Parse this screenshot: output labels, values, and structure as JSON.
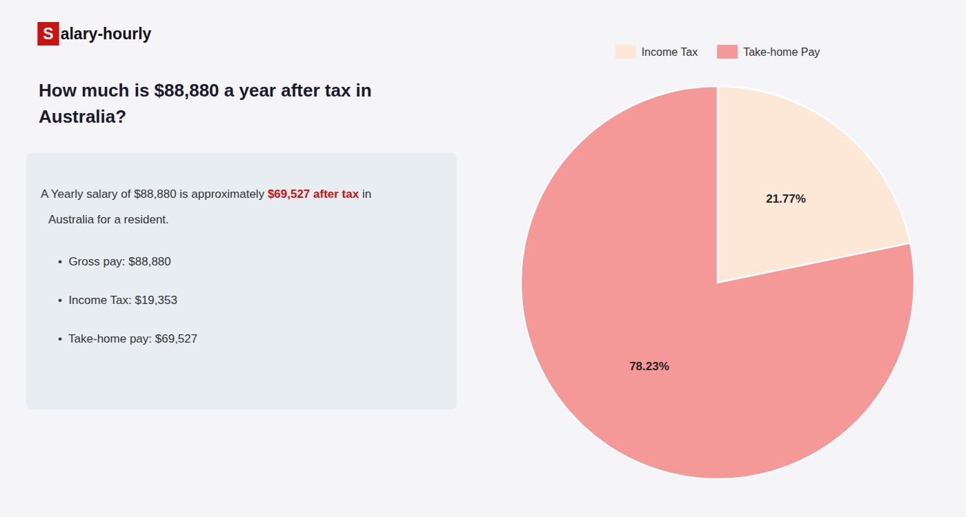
{
  "chart_data": {
    "type": "pie",
    "title": "How much is $88,880 a year after tax in\nAustralia?",
    "annotations": [
      "S",
      "alary-hourly",
      "A Yearly salary of $88,880 is approximately ",
      "$69,527 after tax",
      " in",
      "Australia for a resident.",
      "•  Gross pay: $88,880",
      "•  Income Tax: $19,353",
      "•  Take-home pay: $69,527"
    ],
    "categories": [
      "Income Tax",
      "Take-home Pay"
    ],
    "values": [
      21.77,
      78.23
    ],
    "value_labels": [
      "21.77%",
      "78.23%"
    ],
    "colors": [
      "#fde8d8",
      "#f59898"
    ],
    "data_labels": true,
    "legend": "top"
  }
}
